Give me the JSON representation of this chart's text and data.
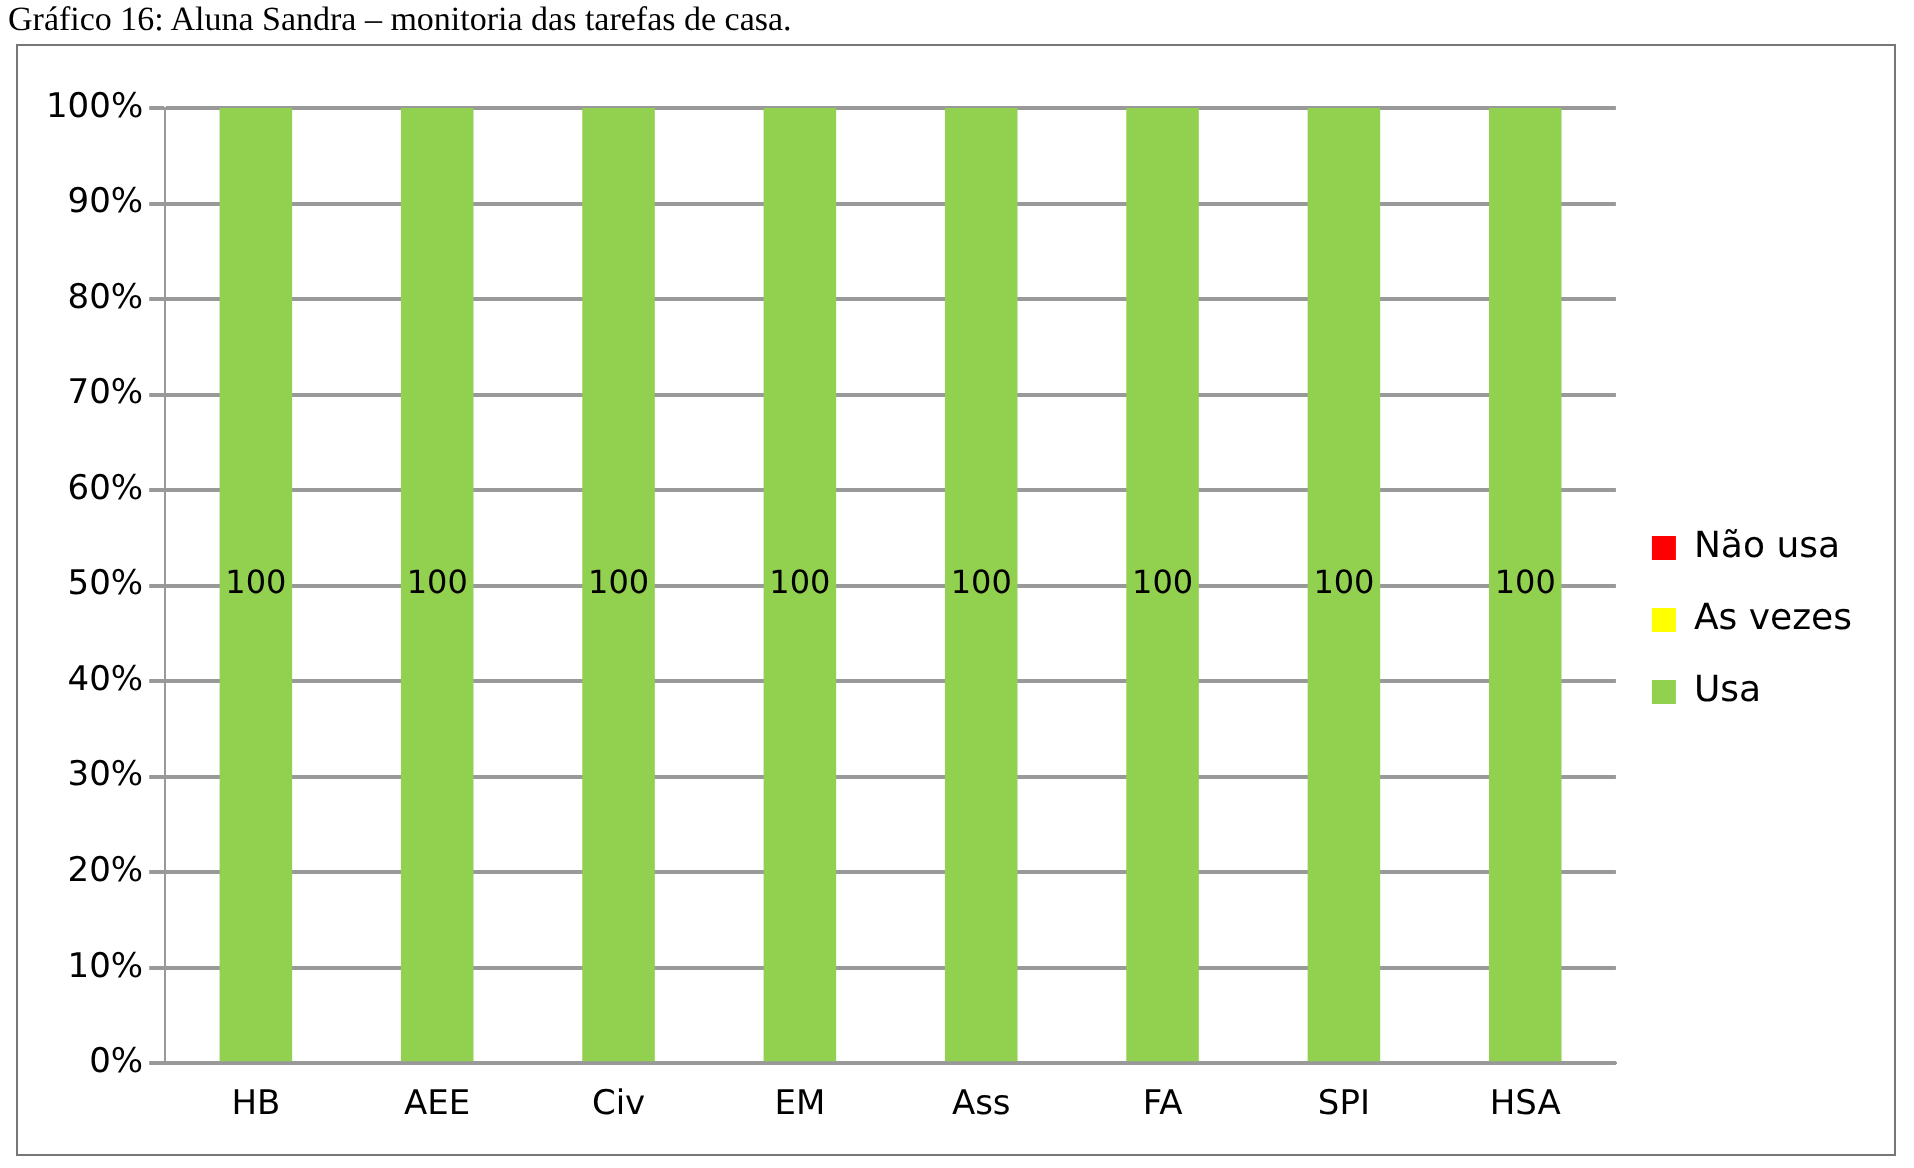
{
  "chart_data": {
    "type": "bar",
    "title": "Gráfico 16: Aluna Sandra – monitoria das tarefas de casa.",
    "stacked": true,
    "categories": [
      "HB",
      "AEE",
      "Civ",
      "EM",
      "Ass",
      "FA",
      "SPI",
      "HSA"
    ],
    "series": [
      {
        "name": "Usa",
        "color": "#92d050",
        "values": [
          100,
          100,
          100,
          100,
          100,
          100,
          100,
          100
        ],
        "value_labels": [
          "100",
          "100",
          "100",
          "100",
          "100",
          "100",
          "100",
          "100"
        ]
      },
      {
        "name": "As vezes",
        "color": "#ffff00",
        "values": [
          0,
          0,
          0,
          0,
          0,
          0,
          0,
          0
        ]
      },
      {
        "name": "Não usa",
        "color": "#ff0000",
        "values": [
          0,
          0,
          0,
          0,
          0,
          0,
          0,
          0
        ]
      }
    ],
    "ylim": [
      0,
      100
    ],
    "yticks": [
      {
        "value": 0,
        "label": "0%"
      },
      {
        "value": 10,
        "label": "10%"
      },
      {
        "value": 20,
        "label": "20%"
      },
      {
        "value": 30,
        "label": "30%"
      },
      {
        "value": 40,
        "label": "40%"
      },
      {
        "value": 50,
        "label": "50%"
      },
      {
        "value": 60,
        "label": "60%"
      },
      {
        "value": 70,
        "label": "70%"
      },
      {
        "value": 80,
        "label": "80%"
      },
      {
        "value": 90,
        "label": "90%"
      },
      {
        "value": 100,
        "label": "100%"
      }
    ],
    "grid": "y",
    "legend": "right"
  }
}
